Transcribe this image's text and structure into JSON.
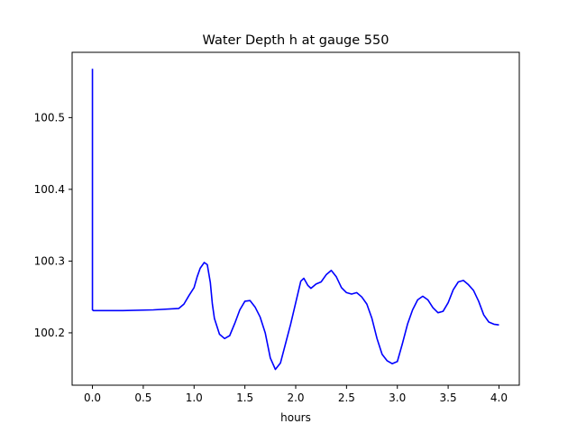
{
  "chart_data": {
    "type": "line",
    "title": "Water Depth h at gauge 550",
    "xlabel": "hours",
    "ylabel": "",
    "xlim": [
      -0.2,
      4.2
    ],
    "ylim": [
      100.127,
      100.591
    ],
    "xticks": [
      0.0,
      0.5,
      1.0,
      1.5,
      2.0,
      2.5,
      3.0,
      3.5,
      4.0
    ],
    "xtick_labels": [
      "0.0",
      "0.5",
      "1.0",
      "1.5",
      "2.0",
      "2.5",
      "3.0",
      "3.5",
      "4.0"
    ],
    "yticks": [
      100.2,
      100.3,
      100.4,
      100.5
    ],
    "ytick_labels": [
      "100.2",
      "100.3",
      "100.4",
      "100.5"
    ],
    "grid": false,
    "legend": "none",
    "series": [
      {
        "color": "#0000ff",
        "x": [
          0.0,
          0.0,
          0.01,
          0.3,
          0.6,
          0.85,
          0.9,
          0.95,
          1.0,
          1.03,
          1.06,
          1.1,
          1.13,
          1.16,
          1.18,
          1.2,
          1.25,
          1.3,
          1.35,
          1.4,
          1.45,
          1.5,
          1.55,
          1.6,
          1.65,
          1.7,
          1.75,
          1.8,
          1.85,
          1.9,
          1.95,
          2.0,
          2.05,
          2.08,
          2.12,
          2.15,
          2.2,
          2.25,
          2.3,
          2.35,
          2.4,
          2.45,
          2.5,
          2.55,
          2.6,
          2.65,
          2.7,
          2.75,
          2.8,
          2.85,
          2.9,
          2.95,
          3.0,
          3.05,
          3.1,
          3.15,
          3.2,
          3.25,
          3.3,
          3.35,
          3.4,
          3.45,
          3.5,
          3.55,
          3.6,
          3.65,
          3.7,
          3.75,
          3.8,
          3.85,
          3.9,
          3.95,
          4.0
        ],
        "y": [
          100.568,
          100.232,
          100.231,
          100.231,
          100.232,
          100.234,
          100.24,
          100.252,
          100.263,
          100.278,
          100.29,
          100.298,
          100.295,
          100.27,
          100.24,
          100.22,
          100.198,
          100.192,
          100.196,
          100.213,
          100.232,
          100.244,
          100.245,
          100.236,
          100.222,
          100.2,
          100.165,
          100.149,
          100.158,
          100.185,
          100.212,
          100.242,
          100.272,
          100.276,
          100.266,
          100.262,
          100.268,
          100.271,
          100.281,
          100.287,
          100.278,
          100.263,
          100.256,
          100.254,
          100.256,
          100.25,
          100.24,
          100.22,
          100.192,
          100.17,
          100.161,
          100.157,
          100.16,
          100.185,
          100.212,
          100.232,
          100.246,
          100.251,
          100.246,
          100.235,
          100.228,
          100.23,
          100.242,
          100.26,
          100.271,
          100.273,
          100.267,
          100.259,
          100.244,
          100.225,
          100.215,
          100.212,
          100.211
        ]
      }
    ]
  }
}
